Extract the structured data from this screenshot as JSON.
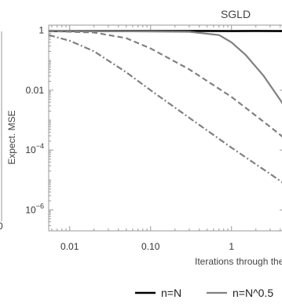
{
  "chart_data": {
    "type": "line",
    "title": "SGLD",
    "xlabel": "Iterations through the data",
    "ylabel": "Expect. MSE",
    "x_scale": "log",
    "y_scale": "log",
    "xlim": [
      0.0055,
      4.5
    ],
    "ylim": [
      2e-07,
      1.5
    ],
    "x_ticks": [
      {
        "value": 0.01,
        "label": "0.01"
      },
      {
        "value": 0.1,
        "label": "0.10"
      },
      {
        "value": 1,
        "label": "1"
      }
    ],
    "y_ticks": [
      {
        "value": 1,
        "label": "1"
      },
      {
        "value": 0.01,
        "label": "0.01"
      },
      {
        "value": 0.0001,
        "label": "10",
        "exp": "−4"
      },
      {
        "value": 1e-06,
        "label": "10",
        "exp": "−6"
      }
    ],
    "left_panel_fragment_label": "0",
    "series": [
      {
        "name": "n=N",
        "color": "#000000",
        "dash": "solid",
        "x": [
          0.0055,
          0.02,
          0.1,
          0.5,
          1,
          2,
          4.5
        ],
        "y": [
          0.95,
          0.96,
          0.95,
          0.96,
          0.95,
          0.96,
          0.95
        ]
      },
      {
        "name": "n=N^0.5",
        "color": "#808080",
        "dash": "solid",
        "x": [
          0.0055,
          0.3,
          0.7,
          1,
          1.5,
          2.5,
          4.5
        ],
        "y": [
          0.98,
          0.9,
          0.7,
          0.4,
          0.15,
          0.03,
          0.003
        ]
      },
      {
        "name": "",
        "color": "#808080",
        "dash": "dashed",
        "x": [
          0.0055,
          0.02,
          0.05,
          0.1,
          0.3,
          1,
          3,
          4.5
        ],
        "y": [
          0.95,
          0.85,
          0.55,
          0.25,
          0.05,
          0.006,
          0.0006,
          0.00025
        ]
      },
      {
        "name": "",
        "color": "#808080",
        "dash": "dashdot",
        "x": [
          0.0055,
          0.01,
          0.02,
          0.05,
          0.1,
          0.3,
          1,
          3,
          4.5
        ],
        "y": [
          0.7,
          0.45,
          0.2,
          0.04,
          0.01,
          0.0012,
          0.00012,
          1.6e-05,
          7.5e-06
        ]
      }
    ],
    "legend": "bottom"
  }
}
